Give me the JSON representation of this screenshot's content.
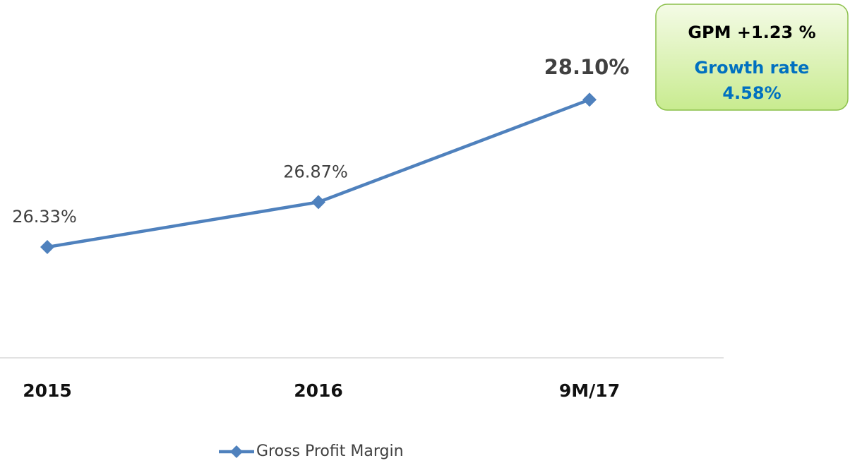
{
  "chart_data": {
    "type": "line",
    "categories": [
      "2015",
      "2016",
      "9M/17"
    ],
    "series": [
      {
        "name": "Gross Profit Margin",
        "color": "#4f81bd",
        "values": [
          26.33,
          26.87,
          28.1
        ],
        "value_labels": [
          "26.33%",
          "26.87%",
          "28.10%"
        ]
      }
    ],
    "ylim": [
      25,
      29
    ],
    "legend": "bottom",
    "annotations": [
      "GPM +1.23 %",
      "Growth rate",
      "4.58%"
    ]
  }
}
